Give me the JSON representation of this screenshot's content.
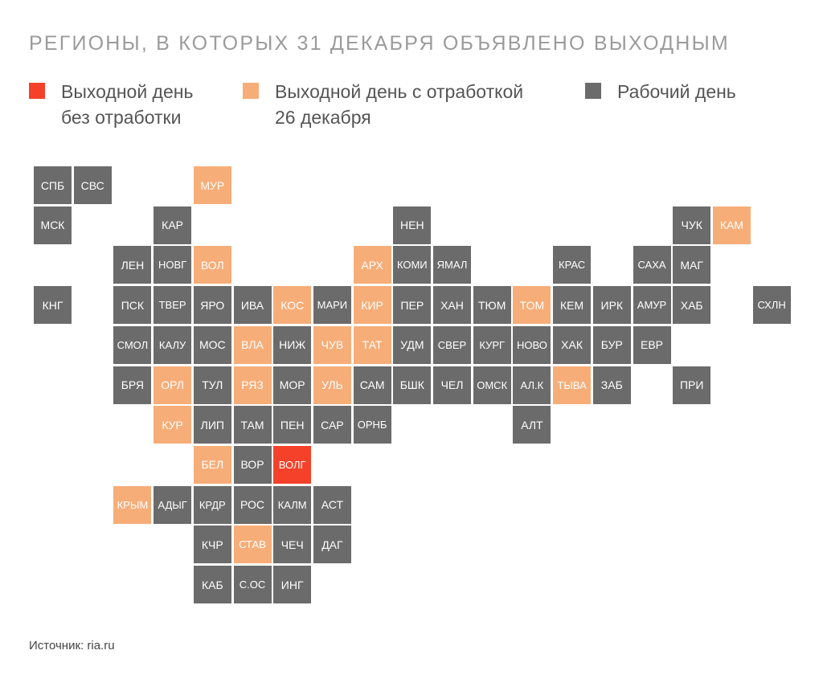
{
  "title": "РЕГИОНЫ, В КОТОРЫХ 31 ДЕКАБРЯ ОБЪЯВЛЕНО ВЫХОДНЫМ",
  "colors": {
    "off": "#f5412a",
    "off_workday": "#f7ad78",
    "work": "#6b6b6b"
  },
  "legend": [
    {
      "category": "off",
      "line1": "Выходной день",
      "line2": "без отработки"
    },
    {
      "category": "off_workday",
      "line1": "Выходной день с отработкой",
      "line2": "26 декабря"
    },
    {
      "category": "work",
      "line1": "Рабочий день",
      "line2": ""
    }
  ],
  "regions": [
    {
      "label": "СПБ",
      "row": 0,
      "col": 0,
      "category": "work"
    },
    {
      "label": "СВС",
      "row": 0,
      "col": 1,
      "category": "work"
    },
    {
      "label": "МУР",
      "row": 0,
      "col": 4,
      "category": "off_workday"
    },
    {
      "label": "МСК",
      "row": 1,
      "col": 0,
      "category": "work"
    },
    {
      "label": "КАР",
      "row": 1,
      "col": 3,
      "category": "work"
    },
    {
      "label": "НЕН",
      "row": 1,
      "col": 9,
      "category": "work"
    },
    {
      "label": "ЧУК",
      "row": 1,
      "col": 16,
      "category": "work"
    },
    {
      "label": "КАМ",
      "row": 1,
      "col": 17,
      "category": "off_workday"
    },
    {
      "label": "ЛЕН",
      "row": 2,
      "col": 2,
      "category": "work"
    },
    {
      "label": "НОВГ",
      "row": 2,
      "col": 3,
      "category": "work"
    },
    {
      "label": "ВОЛ",
      "row": 2,
      "col": 4,
      "category": "off_workday"
    },
    {
      "label": "АРХ",
      "row": 2,
      "col": 8,
      "category": "off_workday"
    },
    {
      "label": "КОМИ",
      "row": 2,
      "col": 9,
      "category": "work"
    },
    {
      "label": "ЯМАЛ",
      "row": 2,
      "col": 10,
      "category": "work"
    },
    {
      "label": "КРАС",
      "row": 2,
      "col": 13,
      "category": "work"
    },
    {
      "label": "САХА",
      "row": 2,
      "col": 15,
      "category": "work"
    },
    {
      "label": "МАГ",
      "row": 2,
      "col": 16,
      "category": "work"
    },
    {
      "label": "КНГ",
      "row": 3,
      "col": 0,
      "category": "work"
    },
    {
      "label": "ПСК",
      "row": 3,
      "col": 2,
      "category": "work"
    },
    {
      "label": "ТВЕР",
      "row": 3,
      "col": 3,
      "category": "work"
    },
    {
      "label": "ЯРО",
      "row": 3,
      "col": 4,
      "category": "work"
    },
    {
      "label": "ИВА",
      "row": 3,
      "col": 5,
      "category": "work"
    },
    {
      "label": "КОС",
      "row": 3,
      "col": 6,
      "category": "off_workday"
    },
    {
      "label": "МАРИ",
      "row": 3,
      "col": 7,
      "category": "work"
    },
    {
      "label": "КИР",
      "row": 3,
      "col": 8,
      "category": "off_workday"
    },
    {
      "label": "ПЕР",
      "row": 3,
      "col": 9,
      "category": "work"
    },
    {
      "label": "ХАН",
      "row": 3,
      "col": 10,
      "category": "work"
    },
    {
      "label": "ТЮМ",
      "row": 3,
      "col": 11,
      "category": "work"
    },
    {
      "label": "ТОМ",
      "row": 3,
      "col": 12,
      "category": "off_workday"
    },
    {
      "label": "КЕМ",
      "row": 3,
      "col": 13,
      "category": "work"
    },
    {
      "label": "ИРК",
      "row": 3,
      "col": 14,
      "category": "work"
    },
    {
      "label": "АМУР",
      "row": 3,
      "col": 15,
      "category": "work"
    },
    {
      "label": "ХАБ",
      "row": 3,
      "col": 16,
      "category": "work"
    },
    {
      "label": "СХЛН",
      "row": 3,
      "col": 18,
      "category": "work"
    },
    {
      "label": "СМОЛ",
      "row": 4,
      "col": 2,
      "category": "work"
    },
    {
      "label": "КАЛУ",
      "row": 4,
      "col": 3,
      "category": "work"
    },
    {
      "label": "МОС",
      "row": 4,
      "col": 4,
      "category": "work"
    },
    {
      "label": "ВЛА",
      "row": 4,
      "col": 5,
      "category": "off_workday"
    },
    {
      "label": "НИЖ",
      "row": 4,
      "col": 6,
      "category": "work"
    },
    {
      "label": "ЧУВ",
      "row": 4,
      "col": 7,
      "category": "off_workday"
    },
    {
      "label": "ТАТ",
      "row": 4,
      "col": 8,
      "category": "off_workday"
    },
    {
      "label": "УДМ",
      "row": 4,
      "col": 9,
      "category": "work"
    },
    {
      "label": "СВЕР",
      "row": 4,
      "col": 10,
      "category": "work"
    },
    {
      "label": "КУРГ",
      "row": 4,
      "col": 11,
      "category": "work"
    },
    {
      "label": "НОВО",
      "row": 4,
      "col": 12,
      "category": "work"
    },
    {
      "label": "ХАК",
      "row": 4,
      "col": 13,
      "category": "work"
    },
    {
      "label": "БУР",
      "row": 4,
      "col": 14,
      "category": "work"
    },
    {
      "label": "ЕВР",
      "row": 4,
      "col": 15,
      "category": "work"
    },
    {
      "label": "БРЯ",
      "row": 5,
      "col": 2,
      "category": "work"
    },
    {
      "label": "ОРЛ",
      "row": 5,
      "col": 3,
      "category": "off_workday"
    },
    {
      "label": "ТУЛ",
      "row": 5,
      "col": 4,
      "category": "work"
    },
    {
      "label": "РЯЗ",
      "row": 5,
      "col": 5,
      "category": "off_workday"
    },
    {
      "label": "МОР",
      "row": 5,
      "col": 6,
      "category": "work"
    },
    {
      "label": "УЛЬ",
      "row": 5,
      "col": 7,
      "category": "off_workday"
    },
    {
      "label": "САМ",
      "row": 5,
      "col": 8,
      "category": "work"
    },
    {
      "label": "БШК",
      "row": 5,
      "col": 9,
      "category": "work"
    },
    {
      "label": "ЧЕЛ",
      "row": 5,
      "col": 10,
      "category": "work"
    },
    {
      "label": "ОМСК",
      "row": 5,
      "col": 11,
      "category": "work"
    },
    {
      "label": "АЛ.К",
      "row": 5,
      "col": 12,
      "category": "work"
    },
    {
      "label": "ТЫВА",
      "row": 5,
      "col": 13,
      "category": "off_workday"
    },
    {
      "label": "ЗАБ",
      "row": 5,
      "col": 14,
      "category": "work"
    },
    {
      "label": "ПРИ",
      "row": 5,
      "col": 16,
      "category": "work"
    },
    {
      "label": "КУР",
      "row": 6,
      "col": 3,
      "category": "off_workday"
    },
    {
      "label": "ЛИП",
      "row": 6,
      "col": 4,
      "category": "work"
    },
    {
      "label": "ТАМ",
      "row": 6,
      "col": 5,
      "category": "work"
    },
    {
      "label": "ПЕН",
      "row": 6,
      "col": 6,
      "category": "work"
    },
    {
      "label": "САР",
      "row": 6,
      "col": 7,
      "category": "work"
    },
    {
      "label": "ОРНБ",
      "row": 6,
      "col": 8,
      "category": "work"
    },
    {
      "label": "АЛТ",
      "row": 6,
      "col": 12,
      "category": "work"
    },
    {
      "label": "БЕЛ",
      "row": 7,
      "col": 4,
      "category": "off_workday"
    },
    {
      "label": "ВОР",
      "row": 7,
      "col": 5,
      "category": "work"
    },
    {
      "label": "ВОЛГ",
      "row": 7,
      "col": 6,
      "category": "off"
    },
    {
      "label": "КРЫМ",
      "row": 8,
      "col": 2,
      "category": "off_workday"
    },
    {
      "label": "АДЫГ",
      "row": 8,
      "col": 3,
      "category": "work"
    },
    {
      "label": "КРДР",
      "row": 8,
      "col": 4,
      "category": "work"
    },
    {
      "label": "РОС",
      "row": 8,
      "col": 5,
      "category": "work"
    },
    {
      "label": "КАЛМ",
      "row": 8,
      "col": 6,
      "category": "work"
    },
    {
      "label": "АСТ",
      "row": 8,
      "col": 7,
      "category": "work"
    },
    {
      "label": "КЧР",
      "row": 9,
      "col": 4,
      "category": "work"
    },
    {
      "label": "СТАВ",
      "row": 9,
      "col": 5,
      "category": "off_workday"
    },
    {
      "label": "ЧЕЧ",
      "row": 9,
      "col": 6,
      "category": "work"
    },
    {
      "label": "ДАГ",
      "row": 9,
      "col": 7,
      "category": "work"
    },
    {
      "label": "КАБ",
      "row": 10,
      "col": 4,
      "category": "work"
    },
    {
      "label": "С.ОС",
      "row": 10,
      "col": 5,
      "category": "work"
    },
    {
      "label": "ИНГ",
      "row": 10,
      "col": 6,
      "category": "work"
    }
  ],
  "source": "Источник: ria.ru"
}
